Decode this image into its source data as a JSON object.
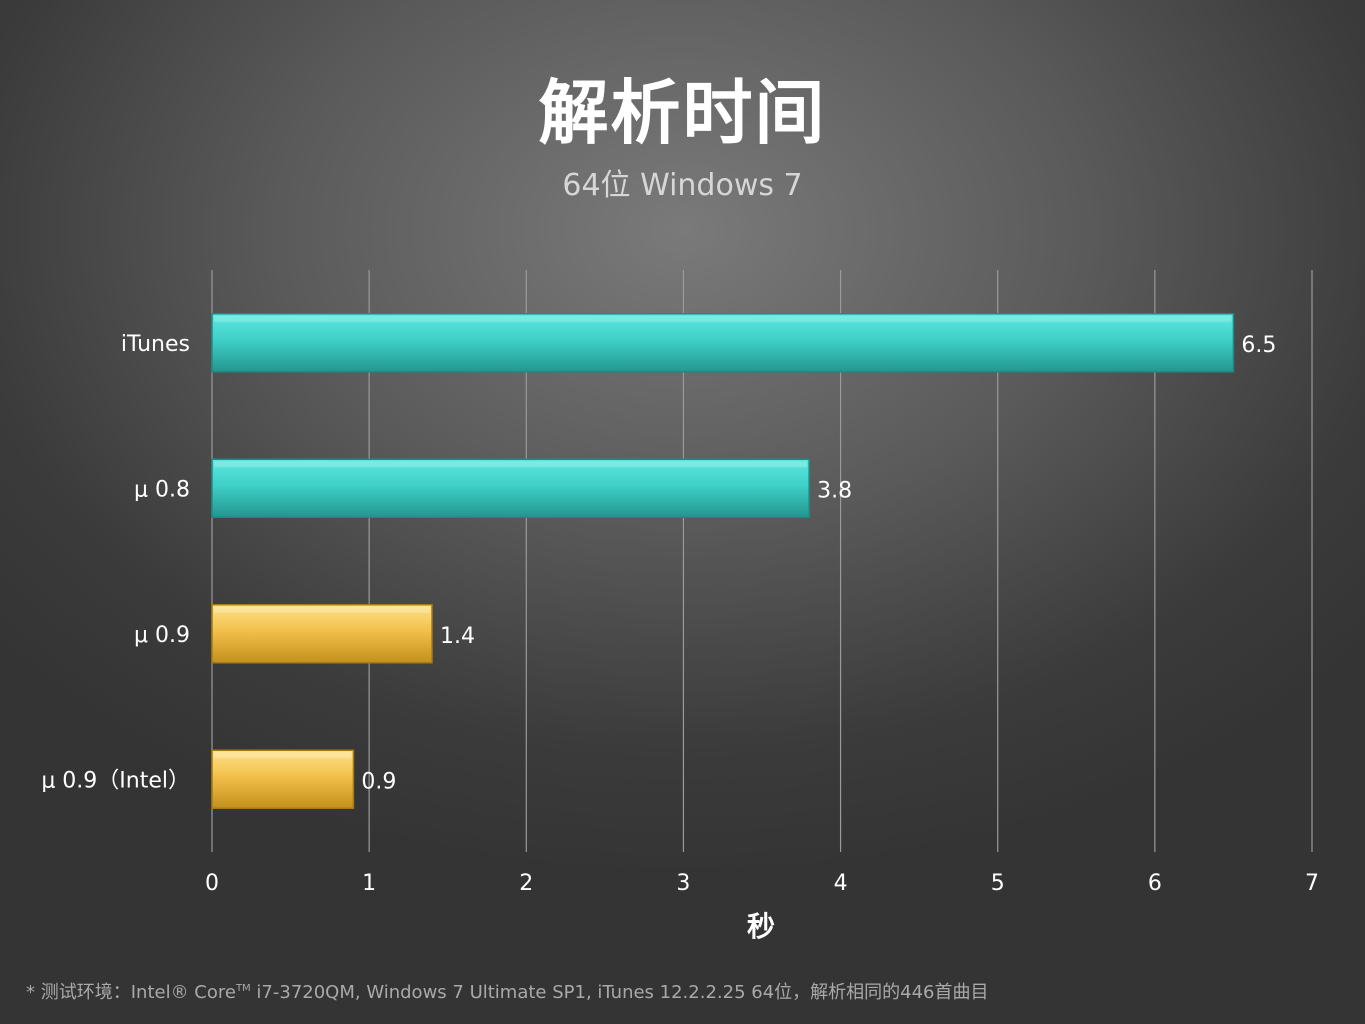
{
  "chart_data": {
    "type": "bar",
    "orientation": "horizontal",
    "title": "解析时间",
    "subtitle": "64位 Windows 7",
    "xlabel": "秒",
    "ylabel": "",
    "xlim": [
      0,
      7
    ],
    "xticks": [
      "0",
      "1",
      "2",
      "3",
      "4",
      "5",
      "6",
      "7"
    ],
    "grid": true,
    "categories": [
      "iTunes",
      "μ 0.8",
      "μ 0.9",
      "μ 0.9（Intel）"
    ],
    "values": [
      6.5,
      3.8,
      1.4,
      0.9
    ],
    "value_labels": [
      "6.5",
      "3.8",
      "1.4",
      "0.9"
    ],
    "bar_colors": [
      "#3fd0c8",
      "#3fd0c8",
      "#f2c04a",
      "#f2c04a"
    ]
  },
  "footnote": {
    "prefix": "* 测试环境：Intel® Core",
    "tm": "TM",
    "suffix": " i7-3720QM, Windows 7 Ultimate SP1, iTunes 12.2.2.25  64位，解析相同的446首曲目"
  },
  "colors": {
    "teal_light": "#4fe0d8",
    "teal_dark": "#26a29b",
    "gold_light": "#fbd874",
    "gold_dark": "#c99622",
    "gridline": "#9a9a9a"
  }
}
